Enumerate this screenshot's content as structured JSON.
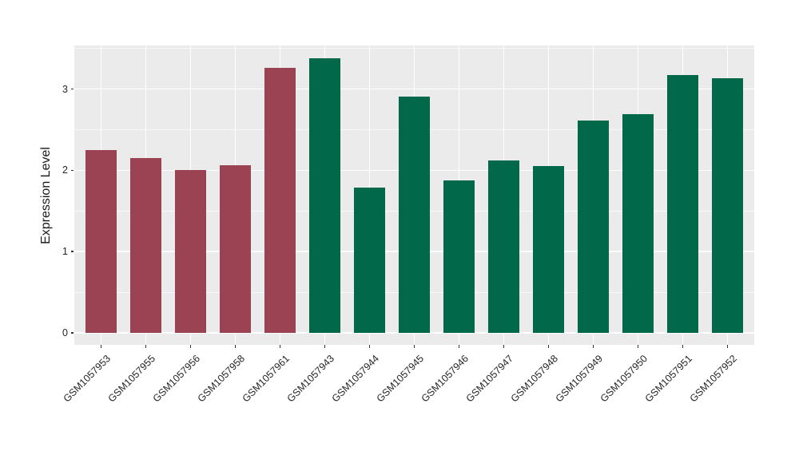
{
  "chart_data": {
    "type": "bar",
    "title": "",
    "xlabel": "",
    "ylabel": "Expression Level",
    "categories": [
      "GSM1057953",
      "GSM1057955",
      "GSM1057956",
      "GSM1057958",
      "GSM1057961",
      "GSM1057943",
      "GSM1057944",
      "GSM1057945",
      "GSM1057946",
      "GSM1057947",
      "GSM1057948",
      "GSM1057949",
      "GSM1057950",
      "GSM1057951",
      "GSM1057952"
    ],
    "values": [
      2.25,
      2.15,
      2.0,
      2.06,
      3.26,
      3.38,
      1.79,
      2.91,
      1.88,
      2.12,
      2.05,
      2.61,
      2.69,
      3.17,
      3.13
    ],
    "bar_colors": [
      "#9C4353",
      "#9C4353",
      "#9C4353",
      "#9C4353",
      "#9C4353",
      "#01684A",
      "#01684A",
      "#01684A",
      "#01684A",
      "#01684A",
      "#01684A",
      "#01684A",
      "#01684A",
      "#01684A",
      "#01684A"
    ],
    "group_colors": {
      "left_group": "#9C4353",
      "right_group": "#01684A"
    },
    "ytick_labels": [
      "0",
      "1",
      "2",
      "3"
    ],
    "ytick_values": [
      0,
      1,
      2,
      3
    ],
    "yminor_values": [
      0.5,
      1.5,
      2.5,
      3.5
    ],
    "ylim": [
      -0.17,
      3.56
    ],
    "grid": "on",
    "legend": "none",
    "panel_bg": "#EBEBEB",
    "grid_color": "#FFFFFF",
    "axis_text_color": "#262626"
  }
}
